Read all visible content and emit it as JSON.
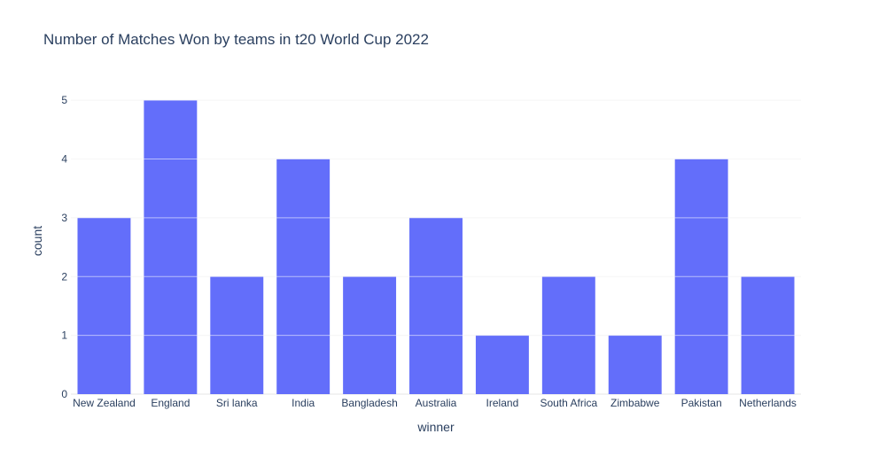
{
  "chart_data": {
    "type": "bar",
    "title": "Number of Matches Won by teams in t20 World Cup 2022",
    "xlabel": "winner",
    "ylabel": "count",
    "categories": [
      "New Zealand",
      "England",
      "Sri lanka",
      "India",
      "Bangladesh",
      "Australia",
      "Ireland",
      "South Africa",
      "Zimbabwe",
      "Pakistan",
      "Netherlands"
    ],
    "values": [
      3,
      5,
      2,
      4,
      2,
      3,
      1,
      2,
      1,
      4,
      2
    ],
    "ylim": [
      0,
      5.5
    ],
    "yticks": [
      0,
      1,
      2,
      3,
      4,
      5
    ],
    "grid": true,
    "bar_color": "#636efa",
    "gridline_color": "#eeeeee",
    "text_color": "#2a3f5f"
  }
}
